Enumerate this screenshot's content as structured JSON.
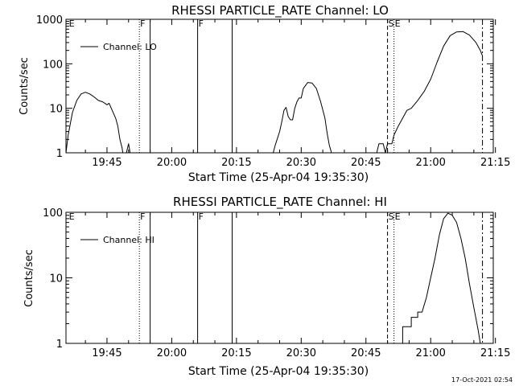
{
  "footer": {
    "timestamp": "17-Oct-2021 02:54"
  },
  "chart_data": [
    {
      "type": "line",
      "title": "RHESSI PARTICLE_RATE Channel: LO",
      "xlabel": "Start Time (25-Apr-04 19:35:30)",
      "ylabel": "Counts/sec",
      "yscale": "log",
      "xlim": [
        "19:35:30",
        "21:14:30"
      ],
      "ylim": [
        1,
        1000
      ],
      "x_ticks": [
        "19:45",
        "20:00",
        "20:15",
        "20:30",
        "20:45",
        "21:00",
        "21:15"
      ],
      "y_ticks": [
        "1",
        "10",
        "100",
        "1000"
      ],
      "legend": {
        "placement": "top-left",
        "entries": [
          "Channel: LO"
        ]
      },
      "markers": [
        {
          "label": "E",
          "time": "19:36:00",
          "style": "text"
        },
        {
          "label": "F",
          "time": "19:52:30",
          "style": "dotted"
        },
        {
          "label": "",
          "time": "19:55:00",
          "style": "solid"
        },
        {
          "label": "F",
          "time": "20:06:00",
          "style": "solid"
        },
        {
          "label": "",
          "time": "20:14:00",
          "style": "solid"
        },
        {
          "label": "S",
          "time": "20:50:00",
          "style": "dashed"
        },
        {
          "label": "E",
          "time": "20:51:30",
          "style": "dotted"
        },
        {
          "label": "",
          "time": "21:12:00",
          "style": "dashdot"
        }
      ],
      "series": [
        {
          "name": "Channel: LO",
          "segments": [
            [
              [
                "19:35:30",
                1
              ],
              [
                "19:36:00",
                2.5
              ],
              [
                "19:37:00",
                8
              ],
              [
                "19:38:00",
                15
              ],
              [
                "19:39:00",
                21
              ],
              [
                "19:40:00",
                23
              ],
              [
                "19:41:00",
                21
              ],
              [
                "19:42:00",
                18
              ],
              [
                "19:43:00",
                15
              ],
              [
                "19:44:00",
                14
              ],
              [
                "19:45:00",
                12
              ],
              [
                "19:45:30",
                13
              ],
              [
                "19:46:00",
                10
              ],
              [
                "19:47:00",
                6
              ],
              [
                "19:47:30",
                4
              ],
              [
                "19:48:00",
                2
              ],
              [
                "19:48:30",
                1.3
              ],
              [
                "19:48:40",
                1
              ]
            ],
            [
              [
                "19:49:30",
                1
              ],
              [
                "19:50:00",
                1.6
              ],
              [
                "19:50:20",
                1
              ]
            ],
            [
              [
                "20:23:30",
                1
              ],
              [
                "20:24:00",
                1.5
              ],
              [
                "20:25:00",
                3
              ],
              [
                "20:25:30",
                5
              ],
              [
                "20:26:00",
                9
              ],
              [
                "20:26:30",
                10.5
              ],
              [
                "20:27:00",
                6.5
              ],
              [
                "20:27:30",
                5.5
              ],
              [
                "20:28:00",
                5.5
              ],
              [
                "20:28:30",
                10
              ],
              [
                "20:29:00",
                14
              ],
              [
                "20:29:30",
                17
              ],
              [
                "20:30:00",
                17
              ],
              [
                "20:30:30",
                28
              ],
              [
                "20:31:30",
                38
              ],
              [
                "20:32:30",
                37
              ],
              [
                "20:33:30",
                28
              ],
              [
                "20:34:30",
                14
              ],
              [
                "20:35:30",
                6
              ],
              [
                "20:36:00",
                2.8
              ],
              [
                "20:36:30",
                1.5
              ],
              [
                "20:37:00",
                1
              ]
            ],
            [
              [
                "20:47:30",
                1
              ],
              [
                "20:48:00",
                1.6
              ],
              [
                "20:49:00",
                1.6
              ],
              [
                "20:49:30",
                1
              ],
              [
                "20:50:00",
                1.6
              ],
              [
                "20:51:00",
                1.6
              ],
              [
                "20:51:30",
                2.5
              ],
              [
                "20:52:30",
                4
              ],
              [
                "20:53:30",
                6
              ],
              [
                "20:54:30",
                9
              ],
              [
                "20:55:30",
                10
              ],
              [
                "20:57:00",
                15
              ],
              [
                "20:58:30",
                24
              ],
              [
                "21:00:00",
                45
              ],
              [
                "21:01:30",
                110
              ],
              [
                "21:03:00",
                250
              ],
              [
                "21:04:30",
                430
              ],
              [
                "21:06:00",
                520
              ],
              [
                "21:07:30",
                530
              ],
              [
                "21:09:00",
                440
              ],
              [
                "21:10:30",
                300
              ],
              [
                "21:11:30",
                200
              ],
              [
                "21:12:00",
                150
              ]
            ]
          ]
        }
      ]
    },
    {
      "type": "line",
      "title": "RHESSI PARTICLE_RATE Channel: HI",
      "xlabel": "Start Time (25-Apr-04 19:35:30)",
      "ylabel": "Counts/sec",
      "yscale": "log",
      "xlim": [
        "19:35:30",
        "21:14:30"
      ],
      "ylim": [
        1,
        100
      ],
      "x_ticks": [
        "19:45",
        "20:00",
        "20:15",
        "20:30",
        "20:45",
        "21:00",
        "21:15"
      ],
      "y_ticks": [
        "1",
        "10",
        "100"
      ],
      "legend": {
        "placement": "top-left",
        "entries": [
          "Channel: HI"
        ]
      },
      "markers": [
        {
          "label": "E",
          "time": "19:36:00",
          "style": "text"
        },
        {
          "label": "F",
          "time": "19:52:30",
          "style": "dotted"
        },
        {
          "label": "",
          "time": "19:55:00",
          "style": "solid"
        },
        {
          "label": "F",
          "time": "20:06:00",
          "style": "solid"
        },
        {
          "label": "",
          "time": "20:14:00",
          "style": "solid"
        },
        {
          "label": "S",
          "time": "20:50:00",
          "style": "dashed"
        },
        {
          "label": "E",
          "time": "20:51:30",
          "style": "dotted"
        },
        {
          "label": "",
          "time": "21:12:00",
          "style": "dashdot"
        }
      ],
      "series": [
        {
          "name": "Channel: HI",
          "segments": [
            [
              [
                "20:51:30",
                1
              ],
              [
                "20:53:30",
                1
              ],
              [
                "20:53:30",
                1.8
              ],
              [
                "20:55:30",
                1.8
              ],
              [
                "20:55:30",
                2.5
              ],
              [
                "20:57:00",
                2.5
              ],
              [
                "20:57:00",
                3
              ],
              [
                "20:58:00",
                3
              ],
              [
                "20:59:00",
                5
              ],
              [
                "21:00:00",
                10
              ],
              [
                "21:01:00",
                20
              ],
              [
                "21:02:00",
                45
              ],
              [
                "21:03:00",
                80
              ],
              [
                "21:04:00",
                97
              ],
              [
                "21:05:00",
                90
              ],
              [
                "21:06:00",
                70
              ],
              [
                "21:07:00",
                40
              ],
              [
                "21:08:00",
                20
              ],
              [
                "21:09:00",
                8
              ],
              [
                "21:10:00",
                3.5
              ],
              [
                "21:11:00",
                1.6
              ],
              [
                "21:11:30",
                1
              ]
            ]
          ]
        }
      ]
    }
  ]
}
